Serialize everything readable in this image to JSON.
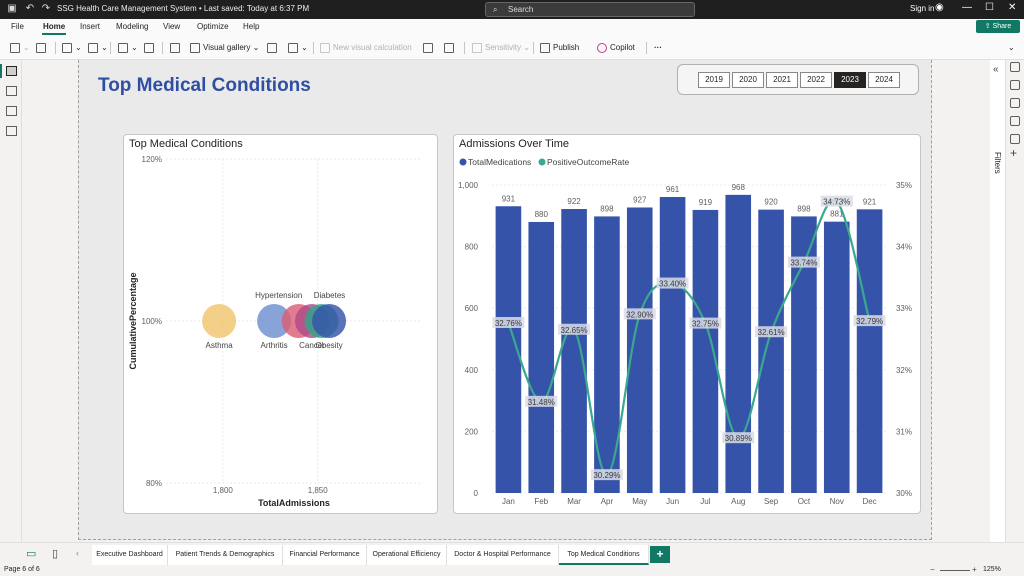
{
  "titlebar": {
    "document_title": "SSG Health Care Management System • Last saved: Today at 6:37 PM",
    "search_placeholder": "Search",
    "signin_label": "Sign in"
  },
  "menu": {
    "items": [
      "File",
      "Home",
      "Insert",
      "Modeling",
      "View",
      "Optimize",
      "Help"
    ],
    "active": "Home",
    "share_label": "Share"
  },
  "ribbon": {
    "visual_gallery": "Visual gallery",
    "new_visual_calculation": "New visual calculation",
    "sensitivity": "Sensitivity",
    "publish": "Publish",
    "copilot": "Copilot"
  },
  "right_pane": {
    "filters_label": "Filters"
  },
  "report": {
    "page_title": "Top Medical Conditions",
    "years": [
      "2019",
      "2020",
      "2021",
      "2022",
      "2023",
      "2024"
    ],
    "selected_year": "2023"
  },
  "scatter_card": {
    "title": "Top Medical Conditions"
  },
  "combo_card": {
    "title": "Admissions Over Time"
  },
  "chart_data": [
    {
      "type": "scatter",
      "title": "Top Medical Conditions",
      "xlabel": "TotalAdmissions",
      "ylabel": "CumulativePercentage",
      "x_ticks": [
        "1,800",
        "1,850"
      ],
      "y_ticks": [
        "120%",
        "100%",
        "80%"
      ],
      "xlim": [
        1770,
        1905
      ],
      "ylim": [
        80,
        120
      ],
      "points": [
        {
          "label": "Asthma",
          "x": 1798,
          "y": 100,
          "color": "#f2c46d"
        },
        {
          "label": "Arthritis",
          "x": 1827,
          "y": 100,
          "color": "#6d8fcf"
        },
        {
          "label": "Hypertension",
          "x": 1840,
          "y": 100,
          "color": "#d95f75"
        },
        {
          "label": "Cancer",
          "x": 1847,
          "y": 100,
          "color": "#b24a8a"
        },
        {
          "label": "Diabetes",
          "x": 1852,
          "y": 100,
          "color": "#2fa58a"
        },
        {
          "label": "Obesity",
          "x": 1856,
          "y": 100,
          "color": "#3553a8"
        }
      ]
    },
    {
      "type": "bar",
      "title": "Admissions Over Time",
      "legend_position": "top-left",
      "categories": [
        "Jan",
        "Feb",
        "Mar",
        "Apr",
        "May",
        "Jun",
        "Jul",
        "Aug",
        "Sep",
        "Oct",
        "Nov",
        "Dec"
      ],
      "series": [
        {
          "name": "TotalMedications",
          "kind": "bar",
          "color": "#3553a8",
          "values": [
            931,
            880,
            922,
            898,
            927,
            961,
            919,
            968,
            920,
            898,
            881,
            921
          ]
        },
        {
          "name": "PositiveOutcomeRate",
          "kind": "line",
          "color": "#3aa88f",
          "values": [
            32.76,
            31.48,
            32.65,
            30.29,
            32.9,
            33.4,
            32.75,
            30.89,
            32.61,
            33.74,
            34.73,
            32.79
          ]
        }
      ],
      "y_left_ticks": [
        "0",
        "200",
        "400",
        "600",
        "800",
        "1,000"
      ],
      "y_left_range": [
        0,
        1000
      ],
      "y_right_ticks": [
        "30%",
        "31%",
        "32%",
        "33%",
        "34%",
        "35%"
      ],
      "y_right_range": [
        30,
        35
      ]
    }
  ],
  "page_tabs": [
    "Executive Dashboard",
    "Patient Trends & Demographics",
    "Financial Performance",
    "Operational Efficiency",
    "Doctor & Hospital Performance",
    "Top Medical Conditions"
  ],
  "active_tab": "Top Medical Conditions",
  "status": {
    "page_indicator": "Page 6 of 6",
    "zoom": "125%"
  }
}
